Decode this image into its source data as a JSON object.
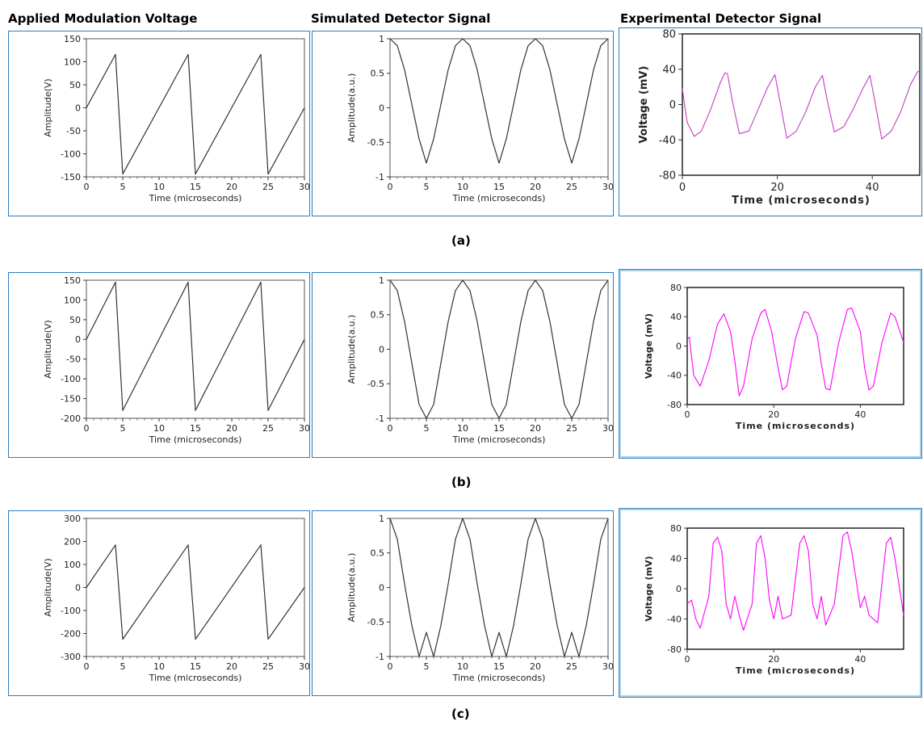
{
  "column_headers": [
    "Applied Modulation Voltage",
    "Simulated Detector Signal",
    "Experimental Detector Signal"
  ],
  "row_labels": [
    "(a)",
    "(b)",
    "(c)"
  ],
  "chart_data": [
    {
      "id": "a1",
      "type": "line",
      "title": "",
      "xlabel": "Time (microseconds)",
      "ylabel": "Amplitude(V)",
      "xlim": [
        0,
        30
      ],
      "ylim": [
        -150,
        150
      ],
      "xticks": [
        0,
        5,
        10,
        15,
        20,
        25,
        30
      ],
      "yticks": [
        150,
        100,
        50,
        0,
        -50,
        -100,
        -150
      ],
      "series": [
        {
          "x": [
            0,
            4,
            5,
            14,
            15,
            24,
            25,
            30
          ],
          "y": [
            0,
            116,
            -144,
            116,
            -144,
            116,
            -144,
            0
          ]
        }
      ]
    },
    {
      "id": "a2",
      "type": "line",
      "title": "",
      "xlabel": "Time (microseconds)",
      "ylabel": "Amplitude(a.u.)",
      "xlim": [
        0,
        30
      ],
      "ylim": [
        -1,
        1
      ],
      "xticks": [
        0,
        5,
        10,
        15,
        20,
        25,
        30
      ],
      "yticks": [
        1,
        0.5,
        0,
        -0.5,
        -1
      ],
      "series": [
        {
          "x": [
            0,
            1,
            2,
            3,
            4,
            5,
            6,
            7,
            8,
            9,
            10,
            11,
            12,
            13,
            14,
            15,
            16,
            17,
            18,
            19,
            20,
            21,
            22,
            23,
            24,
            25,
            26,
            27,
            28,
            29,
            30
          ],
          "y": [
            1,
            0.9,
            0.55,
            0.05,
            -0.45,
            -0.8,
            -0.45,
            0.05,
            0.55,
            0.9,
            1,
            0.9,
            0.55,
            0.05,
            -0.45,
            -0.8,
            -0.45,
            0.05,
            0.55,
            0.9,
            1,
            0.9,
            0.55,
            0.05,
            -0.45,
            -0.8,
            -0.45,
            0.05,
            0.55,
            0.9,
            1
          ]
        }
      ]
    },
    {
      "id": "a3",
      "type": "line",
      "title": "",
      "xlabel": "Time (microseconds)",
      "ylabel": "Voltage (mV)",
      "xlim": [
        0,
        50
      ],
      "ylim": [
        -80,
        80
      ],
      "xticks": [
        0,
        20,
        40
      ],
      "yticks": [
        80,
        40,
        0,
        -40,
        -80
      ],
      "series": [
        {
          "color": "#c040c0",
          "x": [
            0,
            1,
            2.5,
            4,
            6,
            8,
            9,
            9.5,
            10.5,
            12,
            14,
            16,
            18,
            19.5,
            20.5,
            22,
            24,
            26,
            28,
            29.5,
            30.5,
            32,
            34,
            36,
            38,
            39.5,
            40.5,
            42,
            44,
            46,
            48,
            49.5,
            50
          ],
          "y": [
            18,
            -20,
            -36,
            -30,
            -5,
            25,
            36,
            35,
            5,
            -33,
            -30,
            -5,
            20,
            34,
            5,
            -38,
            -30,
            -8,
            20,
            33,
            5,
            -31,
            -25,
            -5,
            18,
            33,
            5,
            -39,
            -30,
            -8,
            22,
            37,
            38
          ]
        }
      ]
    },
    {
      "id": "b1",
      "type": "line",
      "title": "",
      "xlabel": "Time (microseconds)",
      "ylabel": "Amplitude(V)",
      "xlim": [
        0,
        30
      ],
      "ylim": [
        -200,
        150
      ],
      "xticks": [
        0,
        5,
        10,
        15,
        20,
        25,
        30
      ],
      "yticks": [
        150,
        100,
        50,
        0,
        -50,
        -100,
        -150,
        -200
      ],
      "series": [
        {
          "x": [
            0,
            4,
            5,
            14,
            15,
            24,
            25,
            30
          ],
          "y": [
            0,
            145,
            -180,
            145,
            -180,
            145,
            -180,
            0
          ]
        }
      ]
    },
    {
      "id": "b2",
      "type": "line",
      "title": "",
      "xlabel": "Time (microseconds)",
      "ylabel": "Amplitude(a.u.)",
      "xlim": [
        0,
        30
      ],
      "ylim": [
        -1,
        1
      ],
      "xticks": [
        0,
        5,
        10,
        15,
        20,
        25,
        30
      ],
      "yticks": [
        1,
        0.5,
        0,
        -0.5,
        -1
      ],
      "series": [
        {
          "x": [
            0,
            1,
            2,
            3,
            4,
            5,
            6,
            7,
            8,
            9,
            10,
            11,
            12,
            13,
            14,
            15,
            16,
            17,
            18,
            19,
            20,
            21,
            22,
            23,
            24,
            25,
            26,
            27,
            28,
            29,
            30
          ],
          "y": [
            1,
            0.85,
            0.4,
            -0.2,
            -0.8,
            -1,
            -0.8,
            -0.2,
            0.4,
            0.85,
            1,
            0.85,
            0.4,
            -0.2,
            -0.8,
            -1,
            -0.8,
            -0.2,
            0.4,
            0.85,
            1,
            0.85,
            0.4,
            -0.2,
            -0.8,
            -1,
            -0.8,
            -0.2,
            0.4,
            0.85,
            1
          ]
        }
      ]
    },
    {
      "id": "b3",
      "type": "line",
      "title": "",
      "xlabel": "Time (microseconds)",
      "ylabel": "Voltage (mV)",
      "xlim": [
        0,
        50
      ],
      "ylim": [
        -80,
        80
      ],
      "xticks": [
        0,
        20,
        40
      ],
      "yticks": [
        80,
        40,
        0,
        -40,
        -80
      ],
      "series": [
        {
          "color": "#ff00ff",
          "x": [
            0,
            0.5,
            1.5,
            3,
            5,
            7,
            8.5,
            10,
            11,
            12,
            13,
            15,
            17,
            18,
            19.5,
            21,
            22,
            23,
            25,
            27,
            28,
            30,
            31,
            32,
            33,
            35,
            37,
            38,
            40,
            41,
            42,
            43,
            45,
            47,
            48,
            50
          ],
          "y": [
            10,
            12,
            -40,
            -55,
            -20,
            30,
            44,
            20,
            -20,
            -68,
            -55,
            10,
            45,
            50,
            20,
            -30,
            -60,
            -55,
            10,
            47,
            45,
            15,
            -25,
            -58,
            -60,
            5,
            50,
            52,
            20,
            -30,
            -60,
            -55,
            5,
            45,
            40,
            5
          ]
        }
      ]
    },
    {
      "id": "c1",
      "type": "line",
      "title": "",
      "xlabel": "Time (microseconds)",
      "ylabel": "Amplitude(V)",
      "xlim": [
        0,
        30
      ],
      "ylim": [
        -300,
        300
      ],
      "xticks": [
        0,
        5,
        10,
        15,
        20,
        25,
        30
      ],
      "yticks": [
        300,
        200,
        100,
        0,
        -100,
        -200,
        -300
      ],
      "series": [
        {
          "x": [
            0,
            4,
            5,
            14,
            15,
            24,
            25,
            30
          ],
          "y": [
            0,
            185,
            -225,
            185,
            -225,
            185,
            -225,
            0
          ]
        }
      ]
    },
    {
      "id": "c2",
      "type": "line",
      "title": "",
      "xlabel": "Time (microseconds)",
      "ylabel": "Amplitude(a.u.)",
      "xlim": [
        0,
        30
      ],
      "ylim": [
        -1,
        1
      ],
      "xticks": [
        0,
        5,
        10,
        15,
        20,
        25,
        30
      ],
      "yticks": [
        1,
        0.5,
        0,
        -0.5,
        -1
      ],
      "series": [
        {
          "x": [
            0,
            1,
            2,
            3,
            4,
            5,
            6,
            7,
            8,
            9,
            10,
            11,
            12,
            13,
            14,
            15,
            16,
            17,
            18,
            19,
            20,
            21,
            22,
            23,
            24,
            25,
            26,
            27,
            28,
            29,
            30
          ],
          "y": [
            1,
            0.7,
            0.05,
            -0.55,
            -1,
            -0.65,
            -1,
            -0.55,
            0.05,
            0.7,
            1,
            0.7,
            0.05,
            -0.55,
            -1,
            -0.65,
            -1,
            -0.55,
            0.05,
            0.7,
            1,
            0.7,
            0.05,
            -0.55,
            -1,
            -0.65,
            -1,
            -0.55,
            0.05,
            0.7,
            1
          ]
        }
      ]
    },
    {
      "id": "c3",
      "type": "line",
      "title": "",
      "xlabel": "Time (microseconds)",
      "ylabel": "Voltage (mV)",
      "xlim": [
        0,
        50
      ],
      "ylim": [
        -80,
        80
      ],
      "xticks": [
        0,
        20,
        40
      ],
      "yticks": [
        80,
        40,
        0,
        -40,
        -80
      ],
      "series": [
        {
          "color": "#ff00ff",
          "x": [
            0,
            1,
            2,
            3,
            5,
            6,
            7,
            8,
            9,
            10,
            11,
            12,
            13,
            15,
            16,
            17,
            18,
            19,
            20,
            21,
            22,
            24,
            26,
            27,
            28,
            29,
            30,
            31,
            32,
            34,
            36,
            37,
            38,
            40,
            41,
            42,
            44,
            46,
            47,
            48,
            50
          ],
          "y": [
            -20,
            -15,
            -40,
            -52,
            -10,
            60,
            68,
            50,
            -20,
            -40,
            -10,
            -35,
            -55,
            -20,
            60,
            70,
            40,
            -15,
            -40,
            -10,
            -40,
            -35,
            60,
            70,
            50,
            -20,
            -40,
            -10,
            -48,
            -20,
            70,
            75,
            50,
            -25,
            -10,
            -35,
            -45,
            60,
            68,
            40,
            -35
          ]
        }
      ]
    }
  ]
}
